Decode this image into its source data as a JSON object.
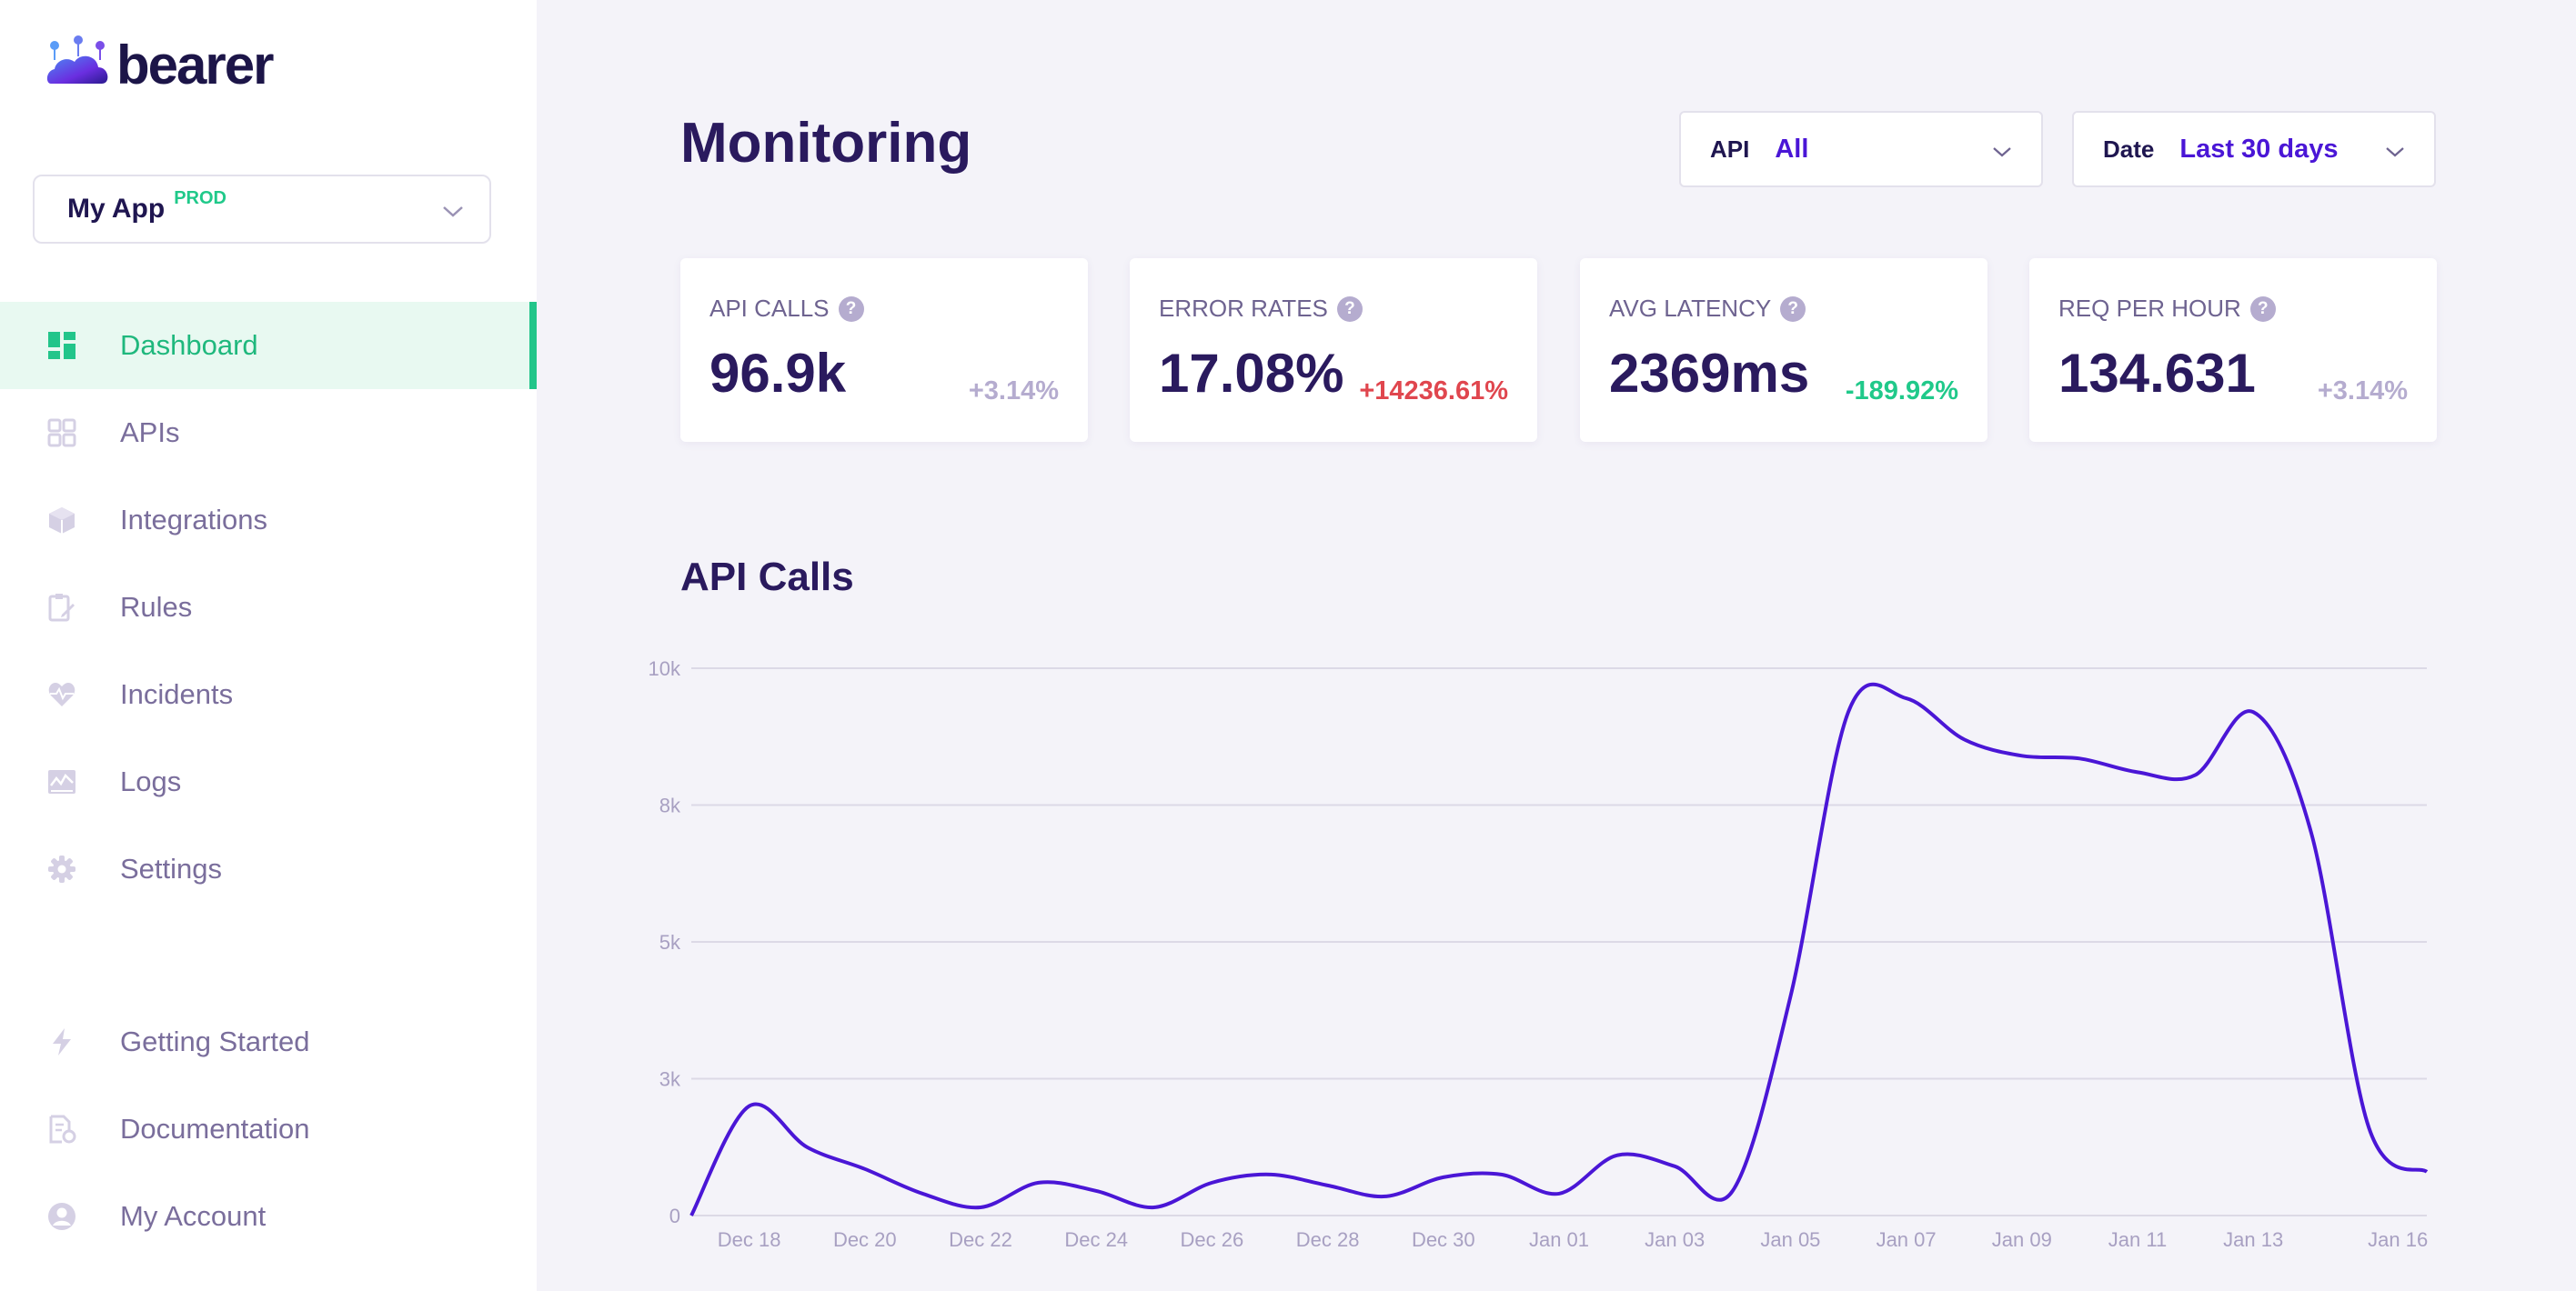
{
  "brand": {
    "name": "bearer"
  },
  "app_selector": {
    "name": "My App",
    "env": "PROD"
  },
  "nav": {
    "items": [
      {
        "label": "Dashboard",
        "icon": "dashboard-icon",
        "active": true
      },
      {
        "label": "APIs",
        "icon": "apis-icon"
      },
      {
        "label": "Integrations",
        "icon": "cube-icon"
      },
      {
        "label": "Rules",
        "icon": "rules-edit-icon"
      },
      {
        "label": "Incidents",
        "icon": "heartbeat-icon"
      },
      {
        "label": "Logs",
        "icon": "logs-chart-icon"
      },
      {
        "label": "Settings",
        "icon": "gear-icon"
      }
    ],
    "bottom": [
      {
        "label": "Getting Started",
        "icon": "lightning-icon"
      },
      {
        "label": "Documentation",
        "icon": "documentation-icon"
      },
      {
        "label": "My Account",
        "icon": "account-icon"
      }
    ]
  },
  "header": {
    "title": "Monitoring",
    "filters": {
      "api": {
        "label": "API",
        "value": "All"
      },
      "date": {
        "label": "Date",
        "value": "Last 30 days"
      }
    }
  },
  "stats": [
    {
      "label": "API CALLS",
      "value": "96.9k",
      "delta": "+3.14%",
      "delta_color": "#b5accf"
    },
    {
      "label": "ERROR RATES",
      "value": "17.08%",
      "delta": "+14236.61%",
      "delta_color": "#e0464e"
    },
    {
      "label": "AVG LATENCY",
      "value": "2369ms",
      "delta": "-189.92%",
      "delta_color": "#20c98a"
    },
    {
      "label": "REQ PER HOUR",
      "value": "134.631",
      "delta": "+3.14%",
      "delta_color": "#b5accf"
    }
  ],
  "colors": {
    "accent": "#4a16d6",
    "success": "#20c98a",
    "danger": "#e0464e",
    "primary_text": "#2a1a5e"
  },
  "chart_data": {
    "type": "line",
    "title": "API Calls",
    "ylim": [
      0,
      10000
    ],
    "y_ticks": [
      {
        "value": 0,
        "label": "0"
      },
      {
        "value": 2500,
        "label": "3k"
      },
      {
        "value": 5000,
        "label": "5k"
      },
      {
        "value": 7500,
        "label": "8k"
      },
      {
        "value": 10000,
        "label": "10k"
      }
    ],
    "x_ticks": [
      {
        "index": 1,
        "label": "Dec 18"
      },
      {
        "index": 3,
        "label": "Dec 20"
      },
      {
        "index": 5,
        "label": "Dec 22"
      },
      {
        "index": 7,
        "label": "Dec 24"
      },
      {
        "index": 9,
        "label": "Dec 26"
      },
      {
        "index": 11,
        "label": "Dec 28"
      },
      {
        "index": 13,
        "label": "Dec 30"
      },
      {
        "index": 15,
        "label": "Jan 01"
      },
      {
        "index": 17,
        "label": "Jan 03"
      },
      {
        "index": 19,
        "label": "Jan 05"
      },
      {
        "index": 21,
        "label": "Jan 07"
      },
      {
        "index": 23,
        "label": "Jan 09"
      },
      {
        "index": 25,
        "label": "Jan 11"
      },
      {
        "index": 27,
        "label": "Jan 13"
      },
      {
        "index": 29.5,
        "label": "Jan 16"
      }
    ],
    "x_max": 30,
    "series": [
      {
        "name": "API Calls",
        "color": "#4a16d6",
        "points": [
          [
            0,
            0
          ],
          [
            1,
            2000
          ],
          [
            2,
            1250
          ],
          [
            3,
            850
          ],
          [
            4,
            400
          ],
          [
            5,
            150
          ],
          [
            6,
            600
          ],
          [
            7,
            450
          ],
          [
            8,
            150
          ],
          [
            9,
            600
          ],
          [
            10,
            750
          ],
          [
            11,
            550
          ],
          [
            12,
            350
          ],
          [
            13,
            700
          ],
          [
            14,
            750
          ],
          [
            15,
            400
          ],
          [
            16,
            1100
          ],
          [
            17,
            900
          ],
          [
            18,
            450
          ],
          [
            19,
            4000
          ],
          [
            20,
            9200
          ],
          [
            21,
            9450
          ],
          [
            22,
            8700
          ],
          [
            23,
            8400
          ],
          [
            24,
            8350
          ],
          [
            25,
            8100
          ],
          [
            26,
            8050
          ],
          [
            27,
            9200
          ],
          [
            28,
            7000
          ],
          [
            29,
            1600
          ],
          [
            30,
            800
          ]
        ]
      }
    ]
  }
}
